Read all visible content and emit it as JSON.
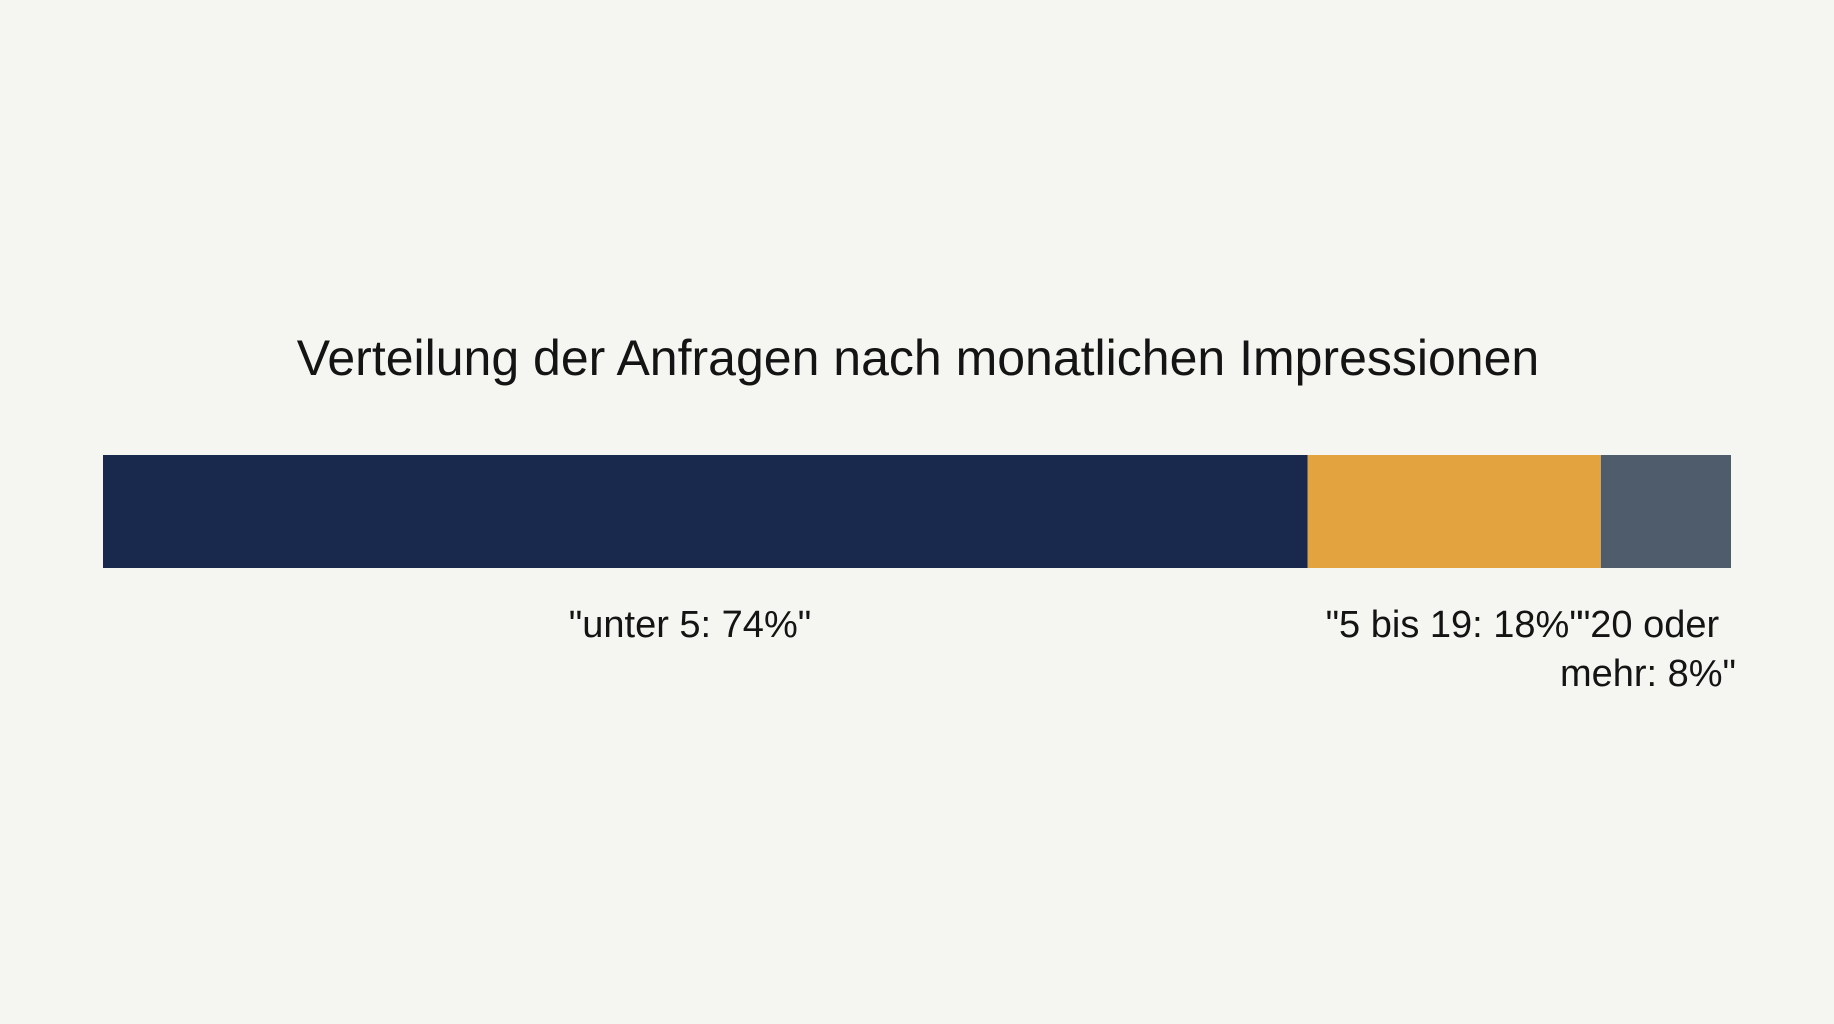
{
  "chart_data": {
    "type": "bar",
    "orientation": "horizontal-stacked",
    "title": "Verteilung der Anfragen nach monatlichen Impressionen",
    "xlabel": "",
    "ylabel": "",
    "xlim": [
      0,
      100
    ],
    "grid": false,
    "legend": "none",
    "categories": [
      "unter 5",
      "5 bis 19",
      "20 oder mehr"
    ],
    "values": [
      74,
      18,
      8
    ],
    "colors": [
      "#19294d",
      "#e3a33e",
      "#4e5c6b"
    ],
    "data_labels": [
      "\"unter 5: 74%\"",
      "\"5 bis 19: 18%\"",
      "\"20 oder mehr: 8%\""
    ]
  }
}
